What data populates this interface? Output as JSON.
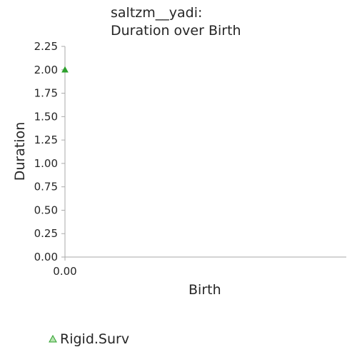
{
  "chart_data": {
    "type": "scatter",
    "title_lines": [
      "saltzm__yadi:",
      "Duration over Birth"
    ],
    "xlabel": "Birth",
    "ylabel": "Duration",
    "xlim": [
      0,
      1
    ],
    "ylim": [
      0,
      2.25
    ],
    "x_ticks": [
      "0.00"
    ],
    "y_ticks": [
      "0.00",
      "0.25",
      "0.50",
      "0.75",
      "1.00",
      "1.25",
      "1.50",
      "1.75",
      "2.00",
      "2.25"
    ],
    "grid": false,
    "legend_position": "bottom-left",
    "series": [
      {
        "name": "Rigid.Surv",
        "marker": "triangle",
        "color": "#2ca02c",
        "points": [
          {
            "x": 0.0,
            "y": 2.0
          }
        ]
      }
    ],
    "colors": {
      "axis": "#aaaaaa",
      "text": "#262626",
      "marker_edge": "#2ca02c",
      "marker_fill": "#b7e3b0"
    }
  }
}
